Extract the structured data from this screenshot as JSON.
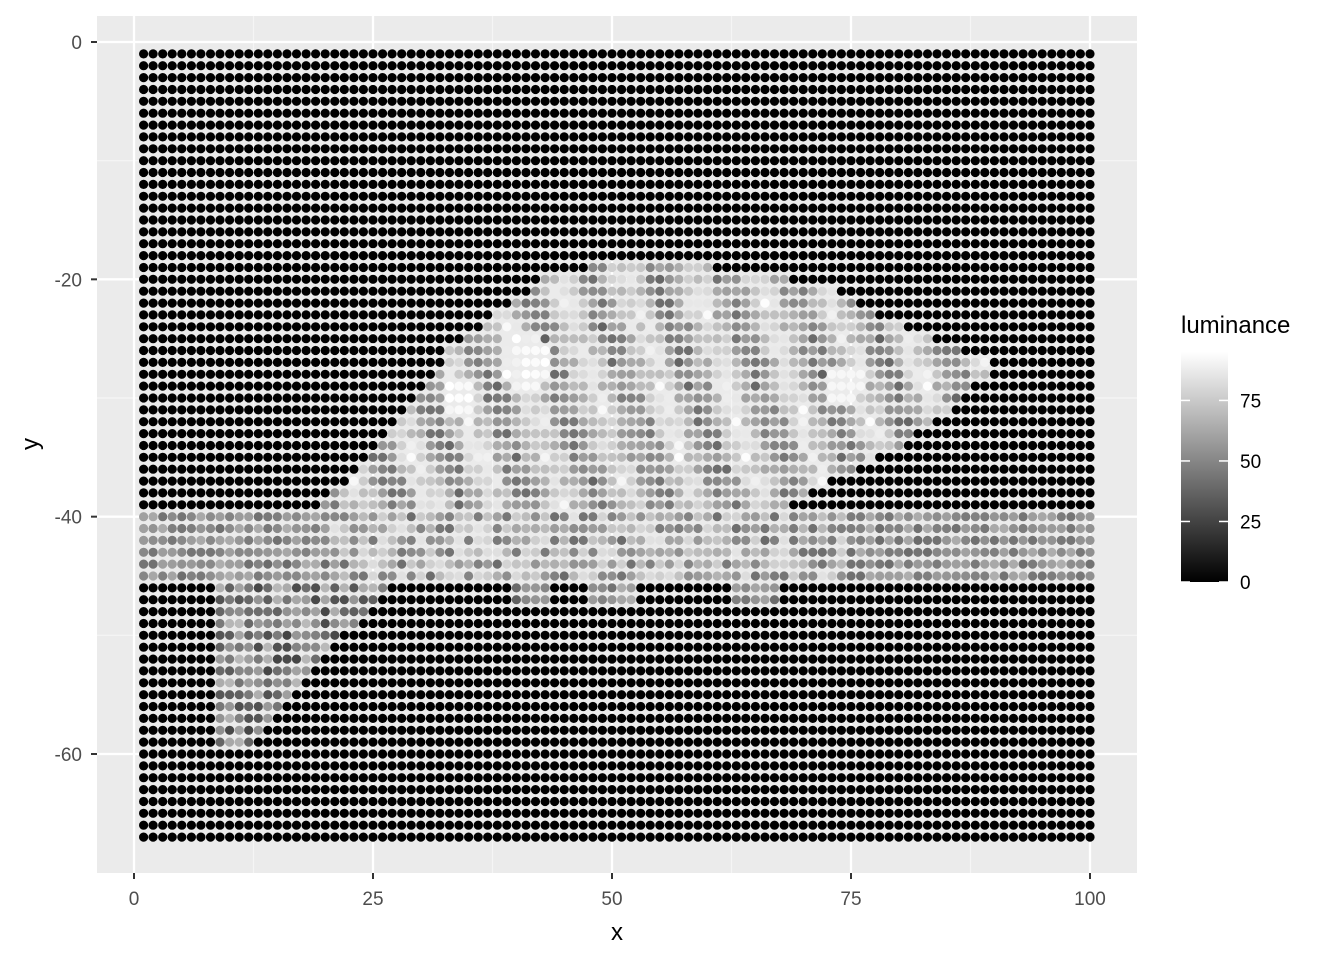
{
  "chart_data": {
    "type": "scatter",
    "title": "",
    "xlabel": "x",
    "ylabel": "y",
    "xlim": [
      -1,
      101
    ],
    "ylim": [
      -70,
      1
    ],
    "x_ticks": [
      0,
      25,
      50,
      75,
      100
    ],
    "x_tick_labels": [
      "0",
      "25",
      "50",
      "75",
      "100"
    ],
    "y_ticks": [
      0,
      -20,
      -40,
      -60
    ],
    "y_tick_labels": [
      "0",
      "-20",
      "-40",
      "-60"
    ],
    "grid": true,
    "legend": {
      "title": "luminance",
      "position": "right",
      "type": "colorbar",
      "breaks": [
        0,
        25,
        50,
        75
      ],
      "labels": [
        "0",
        "25",
        "50",
        "75"
      ],
      "range": [
        0,
        95
      ],
      "low_color": "#000000",
      "high_color": "#ffffff"
    },
    "point_grid": {
      "x_start": 1,
      "x_end": 100,
      "x_step": 1,
      "y_start": -1,
      "y_end": -67,
      "y_step": -1,
      "background_luminance": 0,
      "description_of_fill": "luminance per pixel of a grayscale chameleon on a branch"
    },
    "regions": {
      "branch_rows_y": [
        -40,
        -45
      ],
      "branch_luminance": 55,
      "body_luminance_range": [
        30,
        95
      ]
    }
  },
  "colors": {
    "panel_background": "#ebebeb",
    "grid_major": "#ffffff",
    "grid_minor": "#f5f5f5",
    "tick_text": "#4d4d4d",
    "point_low": "#000000",
    "point_high": "#ffffff"
  }
}
